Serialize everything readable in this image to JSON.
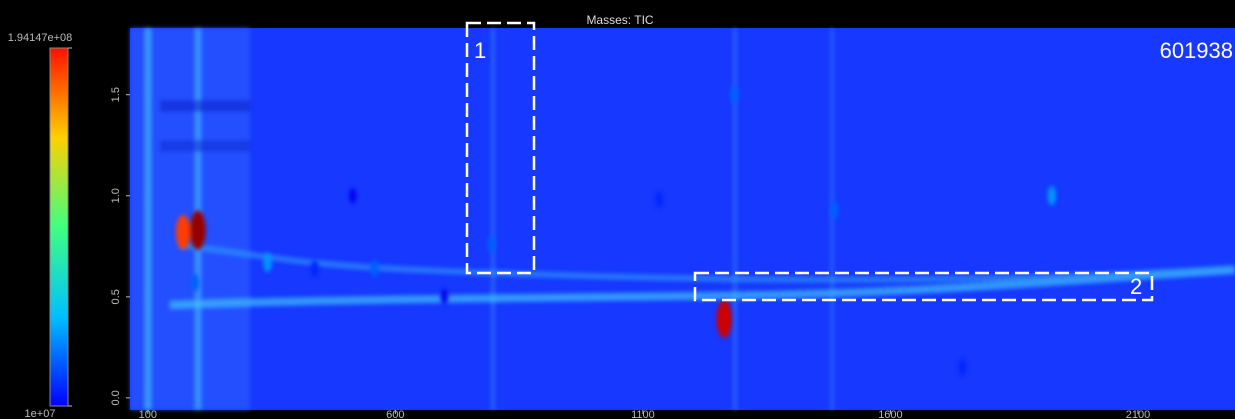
{
  "chart_data": {
    "type": "heatmap",
    "title": "Masses: TIC",
    "xlim": [
      64,
      2296
    ],
    "xticks": [
      100,
      600,
      1100,
      1600,
      2100
    ],
    "ylim": [
      -0.06,
      1.83
    ],
    "yticks": [
      {
        "value": 0,
        "label": "0.0"
      },
      0.5,
      {
        "value": 1,
        "label": "1.0"
      },
      1.5
    ],
    "clim": [
      10000000,
      194147000
    ],
    "cticks": [
      {
        "value": 10000000,
        "label": "1e+07"
      },
      {
        "value": 194147000,
        "label": "1.94147e+08"
      }
    ],
    "colormap": "jet",
    "x": [
      171,
      201,
      342,
      195,
      1264,
      1926,
      1285,
      1487,
      794,
      558,
      1745,
      514,
      1133,
      437,
      699
    ],
    "y": [
      0.82,
      0.83,
      0.67,
      0.57,
      0.39,
      1.0,
      1.5,
      0.93,
      0.76,
      0.64,
      0.15,
      1.0,
      0.98,
      0.64,
      0.5
    ],
    "values": [
      160000000,
      190000000,
      60000000,
      50000000,
      180000000,
      60000000,
      50000000,
      50000000,
      50000000,
      50000000,
      40000000,
      30000000,
      40000000,
      40000000,
      30000000
    ],
    "annotations": [
      "1",
      "2",
      "601938"
    ]
  }
}
